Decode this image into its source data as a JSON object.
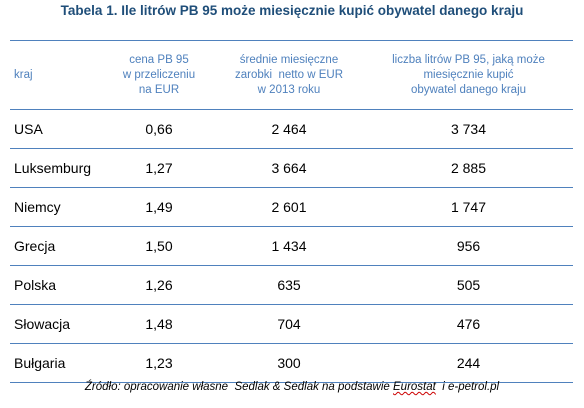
{
  "title": "Tabela 1. Ile litrów PB 95 może miesięcznie kupić obywatel danego kraju",
  "headers": {
    "country": "kraj",
    "price": [
      "cena PB 95",
      "w przeliczeniu",
      "na EUR"
    ],
    "salary": [
      "średnie miesięczne",
      "zarobki  netto w EUR",
      "w 2013 roku"
    ],
    "liters": [
      "liczba litrów PB 95, jaką może",
      "miesięcznie kupić",
      "obywatel danego kraju"
    ]
  },
  "rows": [
    {
      "country": "USA",
      "price": "0,66",
      "salary": "2 464",
      "liters": "3 734"
    },
    {
      "country": "Luksemburg",
      "price": "1,27",
      "salary": "3 664",
      "liters": "2 885"
    },
    {
      "country": "Niemcy",
      "price": "1,49",
      "salary": "2 601",
      "liters": "1 747"
    },
    {
      "country": "Grecja",
      "price": "1,50",
      "salary": "1 434",
      "liters": "956"
    },
    {
      "country": "Polska",
      "price": "1,26",
      "salary": "635",
      "liters": "505"
    },
    {
      "country": "Słowacja",
      "price": "1,48",
      "salary": "704",
      "liters": "476"
    },
    {
      "country": "Bułgaria",
      "price": "1,23",
      "salary": "300",
      "liters": "244"
    }
  ],
  "source": {
    "before": "Źródło: opracowanie własne  Sedlak & Sedlak na podstawie ",
    "underlined": "Eurostat",
    "after": "  i e-petrol.pl"
  }
}
